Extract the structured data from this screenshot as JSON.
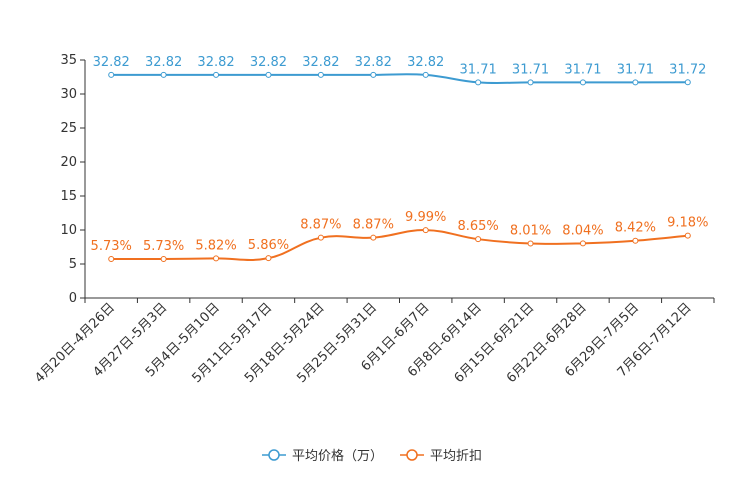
{
  "chart_data": {
    "type": "line",
    "categories": [
      "4月20日-4月26日",
      "4月27日-5月3日",
      "5月4日-5月10日",
      "5月11日-5月17日",
      "5月18日-5月24日",
      "5月25日-5月31日",
      "6月1日-6月7日",
      "6月8日-6月14日",
      "6月15日-6月21日",
      "6月22日-6月28日",
      "6月29日-7月5日",
      "7月6日-7月12日"
    ],
    "ylim": [
      0,
      35
    ],
    "yticks": [
      0,
      5,
      10,
      15,
      20,
      25,
      30,
      35
    ],
    "series": [
      {
        "name": "平均价格（万）",
        "color": "#3d9bd1",
        "values": [
          32.82,
          32.82,
          32.82,
          32.82,
          32.82,
          32.82,
          32.82,
          31.71,
          31.71,
          31.71,
          31.71,
          31.72
        ],
        "labels": [
          "32.82",
          "32.82",
          "32.82",
          "32.82",
          "32.82",
          "32.82",
          "32.82",
          "31.71",
          "31.71",
          "31.71",
          "31.71",
          "31.72"
        ]
      },
      {
        "name": "平均折扣",
        "color": "#f07020",
        "values": [
          5.73,
          5.73,
          5.82,
          5.86,
          8.87,
          8.87,
          9.99,
          8.65,
          8.01,
          8.04,
          8.42,
          9.18
        ],
        "labels": [
          "5.73%",
          "5.73%",
          "5.82%",
          "5.86%",
          "8.87%",
          "8.87%",
          "9.99%",
          "8.65%",
          "8.01%",
          "8.04%",
          "8.42%",
          "9.18%"
        ]
      }
    ],
    "legend_position": "bottom-center",
    "grid": false
  }
}
